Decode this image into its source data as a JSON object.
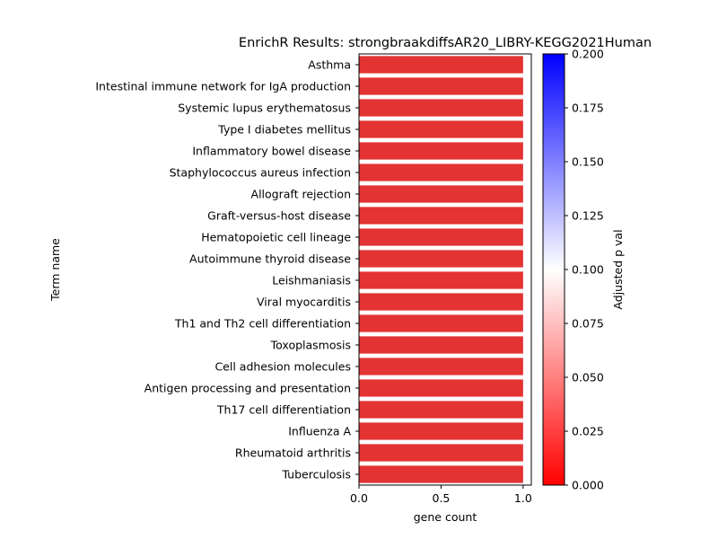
{
  "chart_data": {
    "type": "bar",
    "orientation": "horizontal",
    "title": "EnrichR Results: strongbraakdiffsAR20_LIBRY-KEGG2021Human",
    "xlabel": "gene count",
    "ylabel": "Term name",
    "xlim": [
      0,
      1.05
    ],
    "x_ticks": [
      "0.0",
      "0.5",
      "1.0"
    ],
    "x_tick_values": [
      0,
      0.5,
      1.0
    ],
    "grid": false,
    "bar_color": "#e33333",
    "categories": [
      "Asthma",
      "Intestinal immune network for IgA production",
      "Systemic lupus erythematosus",
      "Type I diabetes mellitus",
      "Inflammatory bowel disease",
      "Staphylococcus aureus infection",
      "Allograft rejection",
      "Graft-versus-host disease",
      "Hematopoietic cell lineage",
      "Autoimmune thyroid disease",
      "Leishmaniasis",
      "Viral myocarditis",
      "Th1 and Th2 cell differentiation",
      "Toxoplasmosis",
      "Cell adhesion molecules",
      "Antigen processing and presentation",
      "Th17 cell differentiation",
      "Influenza A",
      "Rheumatoid arthritis",
      "Tuberculosis"
    ],
    "values": [
      1,
      1,
      1,
      1,
      1,
      1,
      1,
      1,
      1,
      1,
      1,
      1,
      1,
      1,
      1,
      1,
      1,
      1,
      1,
      1
    ],
    "colorbar": {
      "label": "Adjusted p val",
      "range": [
        0.0,
        0.2
      ],
      "ticks": [
        "0.000",
        "0.025",
        "0.050",
        "0.075",
        "0.100",
        "0.125",
        "0.150",
        "0.175",
        "0.200"
      ],
      "tick_values": [
        0.0,
        0.025,
        0.05,
        0.075,
        0.1,
        0.125,
        0.15,
        0.175,
        0.2
      ],
      "colors": [
        "#ff0000",
        "#ffffff",
        "#0000ff"
      ]
    }
  }
}
